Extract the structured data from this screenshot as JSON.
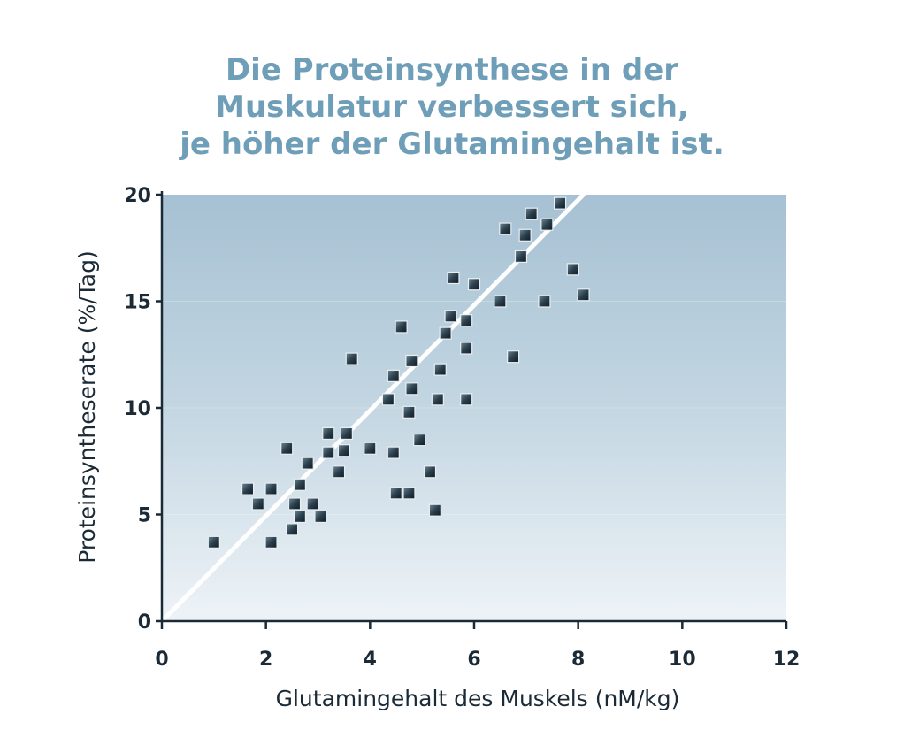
{
  "chart_data": {
    "type": "scatter",
    "title_lines": [
      "Die Proteinsynthese in der",
      "Muskulatur  verbessert sich,",
      "je höher der Glutamingehalt ist."
    ],
    "xlabel": "Glutamingehalt des Muskels (nM/kg)",
    "ylabel": "Proteinsyntheserate (%/Tag)",
    "xlim": [
      0,
      12
    ],
    "ylim": [
      0,
      20
    ],
    "xticks": [
      "0",
      "2",
      "4",
      "6",
      "8",
      "10",
      "12"
    ],
    "yticks": [
      "0",
      "5",
      "10",
      "15",
      "20"
    ],
    "grid": false,
    "trend_line": {
      "x": [
        0,
        8.1
      ],
      "y": [
        0,
        20
      ]
    },
    "colors": {
      "title": "#6f9fb8",
      "marker": "#2b3f4c",
      "trend": "#ffffff",
      "axis": "#1a2a36"
    },
    "points": [
      {
        "x": 1.0,
        "y": 3.7
      },
      {
        "x": 2.1,
        "y": 3.7
      },
      {
        "x": 1.65,
        "y": 6.2
      },
      {
        "x": 1.85,
        "y": 5.5
      },
      {
        "x": 2.1,
        "y": 6.2
      },
      {
        "x": 2.4,
        "y": 8.1
      },
      {
        "x": 2.5,
        "y": 4.3
      },
      {
        "x": 2.55,
        "y": 5.5
      },
      {
        "x": 2.65,
        "y": 4.9
      },
      {
        "x": 2.65,
        "y": 6.4
      },
      {
        "x": 2.8,
        "y": 7.4
      },
      {
        "x": 2.9,
        "y": 5.5
      },
      {
        "x": 3.05,
        "y": 4.9
      },
      {
        "x": 3.2,
        "y": 7.9
      },
      {
        "x": 3.2,
        "y": 8.8
      },
      {
        "x": 3.4,
        "y": 7.0
      },
      {
        "x": 3.5,
        "y": 8.0
      },
      {
        "x": 3.55,
        "y": 8.8
      },
      {
        "x": 3.65,
        "y": 12.3
      },
      {
        "x": 4.0,
        "y": 8.1
      },
      {
        "x": 4.35,
        "y": 10.4
      },
      {
        "x": 4.45,
        "y": 7.9
      },
      {
        "x": 4.45,
        "y": 11.5
      },
      {
        "x": 4.5,
        "y": 6.0
      },
      {
        "x": 4.6,
        "y": 13.8
      },
      {
        "x": 4.75,
        "y": 6.0
      },
      {
        "x": 4.75,
        "y": 9.8
      },
      {
        "x": 4.8,
        "y": 10.9
      },
      {
        "x": 4.8,
        "y": 12.2
      },
      {
        "x": 4.95,
        "y": 8.5
      },
      {
        "x": 5.15,
        "y": 7.0
      },
      {
        "x": 5.25,
        "y": 5.2
      },
      {
        "x": 5.3,
        "y": 10.4
      },
      {
        "x": 5.35,
        "y": 11.8
      },
      {
        "x": 5.45,
        "y": 13.5
      },
      {
        "x": 5.55,
        "y": 14.3
      },
      {
        "x": 5.6,
        "y": 16.1
      },
      {
        "x": 5.85,
        "y": 10.4
      },
      {
        "x": 5.85,
        "y": 12.8
      },
      {
        "x": 5.85,
        "y": 14.1
      },
      {
        "x": 6.0,
        "y": 15.8
      },
      {
        "x": 6.5,
        "y": 15.0
      },
      {
        "x": 6.6,
        "y": 18.4
      },
      {
        "x": 6.75,
        "y": 12.4
      },
      {
        "x": 6.9,
        "y": 17.1
      },
      {
        "x": 6.98,
        "y": 18.1
      },
      {
        "x": 7.1,
        "y": 19.1
      },
      {
        "x": 7.35,
        "y": 15.0
      },
      {
        "x": 7.4,
        "y": 18.6
      },
      {
        "x": 7.65,
        "y": 19.6
      },
      {
        "x": 7.9,
        "y": 16.5
      },
      {
        "x": 8.1,
        "y": 15.3
      }
    ]
  }
}
